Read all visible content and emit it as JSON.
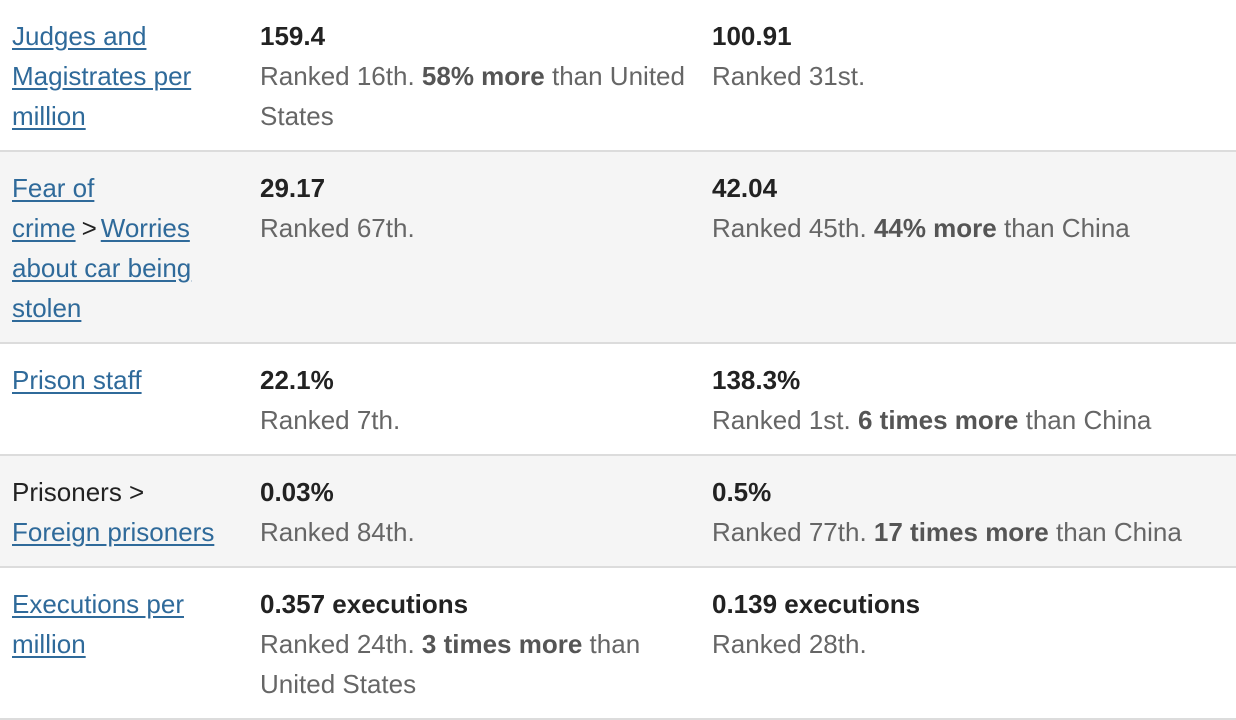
{
  "rows": [
    {
      "label_prefix": "",
      "label_link": "Judges and Magistrates per million",
      "a_value": "159.4",
      "a_rank": "Ranked 16th.",
      "a_cmp": "58% more",
      "a_tail": "than United States",
      "b_value": "100.91",
      "b_rank": "Ranked 31st.",
      "b_cmp": "",
      "b_tail": ""
    },
    {
      "label_link": "Fear of crime",
      "label_sep": ">",
      "label_link2": "Worries about car being stolen",
      "a_value": "29.17",
      "a_rank": "Ranked 67th.",
      "a_cmp": "",
      "a_tail": "",
      "b_value": "42.04",
      "b_rank": "Ranked 45th.",
      "b_cmp": "44% more",
      "b_tail": "than China"
    },
    {
      "label_link": "Prison staff",
      "a_value": "22.1%",
      "a_rank": "Ranked 7th.",
      "a_cmp": "",
      "a_tail": "",
      "b_value": "138.3%",
      "b_rank": "Ranked 1st.",
      "b_cmp": "6 times more",
      "b_tail": "than China"
    },
    {
      "label_plain": "Prisoners >",
      "label_link": "Foreign prisoners",
      "a_value": "0.03%",
      "a_rank": "Ranked 84th.",
      "a_cmp": "",
      "a_tail": "",
      "b_value": "0.5%",
      "b_rank": "Ranked 77th.",
      "b_cmp": "17 times more",
      "b_tail": "than China"
    },
    {
      "label_link": "Executions per million",
      "a_value": "0.357 executions",
      "a_rank": "Ranked 24th.",
      "a_cmp": "3 times more",
      "a_tail": "than United States",
      "b_value": "0.139 executions",
      "b_rank": "Ranked 28th.",
      "b_cmp": "",
      "b_tail": ""
    }
  ]
}
